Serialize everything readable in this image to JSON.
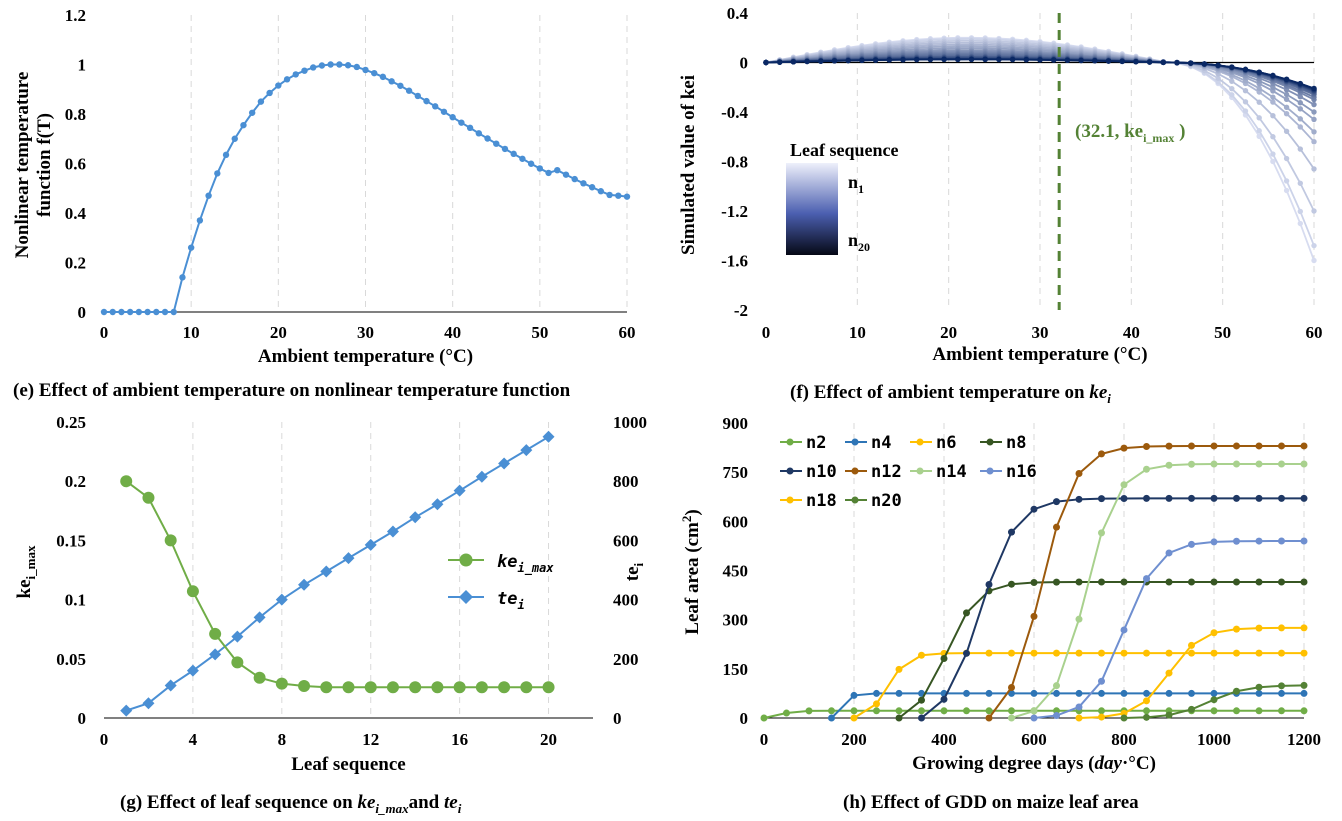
{
  "colors": {
    "blue": "#4a8fd4",
    "green": "#70ad47",
    "dashed": "#548235"
  },
  "chart_data": [
    {
      "id": "e",
      "type": "line",
      "caption": "(e) Effect of ambient temperature on nonlinear temperature function",
      "xlabel": "Ambient temperature (°C)",
      "ylabel_lines": [
        "Nonlinear temperature",
        "function f(T)"
      ],
      "xlim": [
        0,
        60
      ],
      "ylim": [
        0,
        1.2
      ],
      "xticks": [
        "0",
        "10",
        "20",
        "30",
        "40",
        "50",
        "60"
      ],
      "yticks": [
        "0",
        "0.2",
        "0.4",
        "0.6",
        "0.8",
        "1",
        "1.2"
      ],
      "grid": "vertical dashed",
      "series": [
        {
          "color": "#4a8fd4",
          "x": [
            0,
            1,
            2,
            3,
            4,
            5,
            6,
            7,
            8,
            9,
            10,
            11,
            12,
            13,
            14,
            15,
            16,
            17,
            18,
            19,
            20,
            21,
            22,
            23,
            24,
            25,
            26,
            27,
            28,
            29,
            30,
            31,
            32,
            33,
            34,
            35,
            36,
            37,
            38,
            39,
            40,
            41,
            42,
            43,
            44,
            45,
            46,
            47,
            48,
            49,
            50,
            51,
            52,
            53,
            54,
            55,
            56,
            57,
            58,
            59,
            60
          ],
          "y": [
            0,
            0,
            0,
            0,
            0,
            0,
            0,
            0,
            0,
            0.14,
            0.26,
            0.37,
            0.47,
            0.56,
            0.635,
            0.7,
            0.755,
            0.805,
            0.85,
            0.885,
            0.915,
            0.94,
            0.96,
            0.975,
            0.988,
            0.996,
            1.0,
            1.0,
            0.997,
            0.99,
            0.978,
            0.965,
            0.95,
            0.932,
            0.914,
            0.894,
            0.873,
            0.852,
            0.831,
            0.809,
            0.787,
            0.765,
            0.744,
            0.722,
            0.701,
            0.68,
            0.659,
            0.639,
            0.619,
            0.599,
            0.58,
            0.562,
            0.573,
            0.555,
            0.537,
            0.52,
            0.504,
            0.488,
            0.473,
            0.47,
            0.466
          ]
        }
      ]
    },
    {
      "id": "f",
      "type": "line",
      "caption_prefix": "(f) Effect of ambient temperature on ",
      "caption_math": "ke",
      "caption_sub": "i",
      "xlabel": "Ambient temperature (°C)",
      "ylabel": "Simulated value of  kei",
      "xlim": [
        0,
        60
      ],
      "ylim": [
        -2,
        0.4
      ],
      "xticks": [
        "0",
        "10",
        "20",
        "30",
        "40",
        "50",
        "60"
      ],
      "yticks": [
        "-2",
        "-1.6",
        "-1.2",
        "-0.8",
        "-0.4",
        "0",
        "0.4"
      ],
      "grid": "vertical dashed",
      "annotation": {
        "x": 32.1,
        "text": "(32.1, ke",
        "sub": "i_max",
        "close": " )"
      },
      "legend": {
        "title": "Leaf sequence",
        "top": "n",
        "top_sub": "1",
        "bottom": "n",
        "bottom_sub": "20",
        "placement": "middle-left"
      },
      "series_count": 20,
      "series_peak": [
        0.2,
        0.19,
        0.175,
        0.16,
        0.145,
        0.13,
        0.115,
        0.1,
        0.09,
        0.08,
        0.07,
        0.06,
        0.05,
        0.045,
        0.04,
        0.035,
        0.03,
        0.028,
        0.026,
        0.025
      ],
      "series_end": [
        -1.6,
        -1.48,
        -1.2,
        -0.86,
        -0.64,
        -0.56,
        -0.46,
        -0.4,
        -0.34,
        -0.3,
        -0.28,
        -0.26,
        -0.25,
        -0.24,
        -0.23,
        -0.23,
        -0.22,
        -0.22,
        -0.21,
        -0.21
      ]
    },
    {
      "id": "g",
      "type": "line",
      "caption_prefix": "(g) Effect of leaf sequence on ",
      "caption_mid": "and ",
      "xlabel": "Leaf sequence",
      "ylabel": "ke",
      "ylabel_sub": "i_max",
      "y2label": "te",
      "y2label_sub": "i",
      "xlim": [
        0,
        22
      ],
      "ylim": [
        0,
        0.25
      ],
      "y2lim": [
        0,
        1000
      ],
      "xticks": [
        "0",
        "4",
        "8",
        "12",
        "16",
        "20"
      ],
      "yticks": [
        "0",
        "0.05",
        "0.1",
        "0.15",
        "0.2",
        "0.25"
      ],
      "y2ticks": [
        "0",
        "200",
        "400",
        "600",
        "800",
        "1000"
      ],
      "grid": "vertical dashed",
      "legend_placement": "right-middle",
      "series": [
        {
          "name": "ke",
          "name_sub": "i_max",
          "color": "#70ad47",
          "marker": "circle",
          "axis": "left",
          "x": [
            1,
            2,
            3,
            4,
            5,
            6,
            7,
            8,
            9,
            10,
            11,
            12,
            13,
            14,
            15,
            16,
            17,
            18,
            19,
            20
          ],
          "y": [
            0.2,
            0.186,
            0.15,
            0.107,
            0.071,
            0.047,
            0.034,
            0.029,
            0.027,
            0.026,
            0.026,
            0.026,
            0.026,
            0.026,
            0.026,
            0.026,
            0.026,
            0.026,
            0.026,
            0.026
          ]
        },
        {
          "name": "te",
          "name_sub": "i",
          "color": "#4a8fd4",
          "marker": "diamond",
          "axis": "right",
          "x": [
            1,
            2,
            3,
            4,
            5,
            6,
            7,
            8,
            9,
            10,
            11,
            12,
            13,
            14,
            15,
            16,
            17,
            18,
            19,
            20
          ],
          "y": [
            25,
            50,
            110,
            160,
            215,
            275,
            340,
            400,
            450,
            495,
            540,
            585,
            630,
            678,
            722,
            768,
            815,
            860,
            905,
            950
          ]
        }
      ]
    },
    {
      "id": "h",
      "type": "line",
      "caption": "(h) Effect of GDD on maize leaf area",
      "xlabel": "Growing degree days (",
      "xlabel_math": "day",
      "xlabel_tail": "·°C)",
      "ylabel": "Leaf area (cm",
      "ylabel_sup": "2",
      "ylabel_tail": ")",
      "xlim": [
        0,
        1200
      ],
      "ylim": [
        0,
        900
      ],
      "xticks": [
        "0",
        "200",
        "400",
        "600",
        "800",
        "1000",
        "1200"
      ],
      "yticks": [
        "0",
        "150",
        "300",
        "450",
        "600",
        "750",
        "900"
      ],
      "grid": "vertical dashed",
      "legend_placement": "top-left",
      "series": [
        {
          "name": "n2",
          "color": "#70ad47",
          "start": 0,
          "mid": 40,
          "width": 12,
          "max": 22
        },
        {
          "name": "n4",
          "color": "#2e75b6",
          "start": 150,
          "mid": 175,
          "width": 10,
          "max": 75
        },
        {
          "name": "n6",
          "color": "#ffc000",
          "start": 200,
          "mid": 275,
          "width": 22,
          "max": 198
        },
        {
          "name": "n8",
          "color": "#375623",
          "start": 300,
          "mid": 405,
          "width": 35,
          "max": 415
        },
        {
          "name": "n10",
          "color": "#1f3864",
          "start": 350,
          "mid": 480,
          "width": 40,
          "max": 670
        },
        {
          "name": "n12",
          "color": "#9c5a0d",
          "start": 500,
          "mid": 615,
          "width": 38,
          "max": 830
        },
        {
          "name": "n14",
          "color": "#a9d18e",
          "start": 550,
          "mid": 715,
          "width": 35,
          "max": 775
        },
        {
          "name": "n16",
          "color": "#6f8fd0",
          "start": 600,
          "mid": 800,
          "width": 38,
          "max": 540
        },
        {
          "name": "n18",
          "color": "#ffc000",
          "start": 700,
          "mid": 900,
          "width": 35,
          "max": 275
        },
        {
          "name": "n20",
          "color": "#548235",
          "start": 800,
          "mid": 990,
          "width": 40,
          "max": 100
        }
      ]
    }
  ]
}
